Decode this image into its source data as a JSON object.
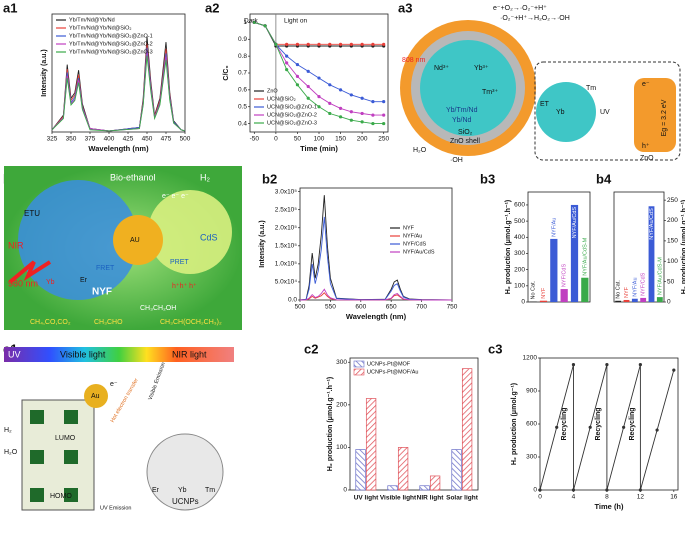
{
  "panels": [
    "a1",
    "a2",
    "a3",
    "b1",
    "b2",
    "b3",
    "b4",
    "c1",
    "c2",
    "c3"
  ],
  "diagram_a3": [
    "e⁻+O₂→·O₂⁻+H⁺",
    "·O₂⁻+H⁺→H₂O₂→·OH",
    "808 nm",
    "Nd³⁺",
    "Yb³⁺",
    "Tm³⁺",
    "Yb/Tm/Nd",
    "Yb/Nd",
    "SiO₂",
    "ZnO shell",
    "H₂O",
    "·OH",
    "ET",
    "Yb",
    "Tm",
    "UV",
    "e⁻",
    "h⁺",
    "ZnO",
    "Eg = 3.2 eV"
  ],
  "diagram_b1": [
    "Bio-ethanol",
    "H₂",
    "NIR",
    "980 nm",
    "ETU",
    "Yb",
    "Er",
    "NYF",
    "AU",
    "CdS",
    "PRET",
    "FRET",
    "CH₄,CO,CO₂",
    "CH₃CHO",
    "CH₃CH₂OH",
    "CH₃CH(OCH₂CH₃)₂",
    "e⁻ e⁻ e⁻",
    "h⁺h⁺ h⁺"
  ],
  "diagram_c1": [
    "UV",
    "Visible light",
    "NIR light",
    "LUMO",
    "HOMO",
    "Au",
    "e⁻",
    "H₂",
    "H₂O",
    "Hot electron transfer",
    "Visible Emission",
    "UV Emission",
    "Er",
    "Yb",
    "Tm",
    "UCNPs"
  ],
  "chart_data": [
    {
      "type": "line",
      "x_label": "Wavelength (nm)",
      "y_label": "Intensity (a.u.)",
      "xlim": [
        325,
        500
      ],
      "ylim": [
        0,
        1.05
      ],
      "xticks": [
        325,
        350,
        375,
        400,
        425,
        450,
        475,
        500
      ],
      "legend": "upper left",
      "x": [
        325,
        340,
        345,
        350,
        355,
        360,
        365,
        375,
        400,
        440,
        445,
        450,
        455,
        460,
        467,
        475,
        480,
        485,
        495,
        500
      ],
      "series": [
        {
          "name": "Yb/Tm/Nd@Yb/Nd",
          "color": "#222222",
          "values": [
            0.02,
            0.15,
            0.6,
            0.3,
            0.35,
            0.55,
            0.25,
            0.03,
            0.01,
            0.04,
            0.3,
            0.85,
            0.45,
            0.15,
            0.3,
            0.8,
            0.35,
            0.1,
            0.02,
            0.01
          ]
        },
        {
          "name": "Yb/Tm/Nd@Yb/Nd@SiO₂",
          "color": "#e8403a",
          "values": [
            0.02,
            0.14,
            0.56,
            0.28,
            0.33,
            0.51,
            0.23,
            0.03,
            0.01,
            0.04,
            0.28,
            0.79,
            0.42,
            0.14,
            0.28,
            0.74,
            0.33,
            0.09,
            0.02,
            0.01
          ]
        },
        {
          "name": "Yb/Tm/Nd@Yb/Nd@SiO₂@ZnO-1",
          "color": "#3b5bd6",
          "values": [
            0.02,
            0.13,
            0.53,
            0.26,
            0.31,
            0.48,
            0.22,
            0.03,
            0.01,
            0.04,
            0.26,
            0.75,
            0.4,
            0.13,
            0.26,
            0.7,
            0.31,
            0.09,
            0.02,
            0.01
          ]
        },
        {
          "name": "Yb/Tm/Nd@Yb/Nd@SiO₂@ZnO-2",
          "color": "#c03fc0",
          "values": [
            0.02,
            0.13,
            0.5,
            0.25,
            0.29,
            0.46,
            0.21,
            0.03,
            0.01,
            0.03,
            0.25,
            0.71,
            0.38,
            0.13,
            0.25,
            0.67,
            0.29,
            0.08,
            0.02,
            0.01
          ]
        },
        {
          "name": "Yb/Tm/Nd@Yb/Nd@SiO₂@ZnO-3",
          "color": "#3aaa4a",
          "values": [
            0.02,
            0.12,
            0.48,
            0.24,
            0.28,
            0.44,
            0.2,
            0.02,
            0.01,
            0.03,
            0.24,
            0.68,
            0.36,
            0.12,
            0.24,
            0.64,
            0.28,
            0.08,
            0.02,
            0.01
          ]
        }
      ]
    },
    {
      "type": "line",
      "x_label": "Time (min)",
      "y_label": "C/C₀",
      "xlim": [
        -60,
        260
      ],
      "ylim": [
        0.35,
        1.05
      ],
      "xticks": [
        -50,
        0,
        50,
        100,
        150,
        200,
        250
      ],
      "yticks": [
        0.4,
        0.5,
        0.6,
        0.7,
        0.8,
        0.9,
        1.0
      ],
      "legend": "lower left",
      "markers": true,
      "annotations": [
        "Dark",
        "Light on"
      ],
      "x": [
        -50,
        -25,
        0,
        25,
        50,
        75,
        100,
        125,
        150,
        175,
        200,
        225,
        250
      ],
      "series": [
        {
          "name": "ZnO",
          "color": "#222222",
          "values": [
            1.0,
            0.98,
            0.86,
            0.86,
            0.86,
            0.86,
            0.86,
            0.86,
            0.86,
            0.86,
            0.86,
            0.86,
            0.86
          ]
        },
        {
          "name": "UCN@SiO₂",
          "color": "#e8403a",
          "values": [
            1.0,
            0.98,
            0.87,
            0.87,
            0.87,
            0.87,
            0.87,
            0.87,
            0.87,
            0.87,
            0.87,
            0.87,
            0.87
          ]
        },
        {
          "name": "UCN@SiO₂@ZnO-1",
          "color": "#3b5bd6",
          "values": [
            1.0,
            0.98,
            0.87,
            0.8,
            0.75,
            0.71,
            0.67,
            0.63,
            0.6,
            0.57,
            0.55,
            0.53,
            0.53
          ]
        },
        {
          "name": "UCN@SiO₂@ZnO-2",
          "color": "#c03fc0",
          "values": [
            1.0,
            0.98,
            0.87,
            0.76,
            0.68,
            0.62,
            0.56,
            0.52,
            0.49,
            0.47,
            0.46,
            0.45,
            0.45
          ]
        },
        {
          "name": "UCN@SiO₂@ZnO-3",
          "color": "#3aaa4a",
          "values": [
            1.0,
            0.98,
            0.87,
            0.72,
            0.63,
            0.55,
            0.5,
            0.46,
            0.44,
            0.42,
            0.41,
            0.4,
            0.4
          ]
        }
      ]
    },
    {
      "type": "line",
      "x_label": "Wavelength (nm)",
      "y_label": "Intensity (a.u.)",
      "xlim": [
        500,
        750
      ],
      "ylim": [
        0,
        310000
      ],
      "xticks": [
        500,
        550,
        600,
        650,
        700,
        750
      ],
      "yticks": [
        {
          "value": 0,
          "label": "0.0"
        },
        {
          "value": 50000,
          "label": "5.0x10⁴"
        },
        {
          "value": 100000,
          "label": "1.0x10⁵"
        },
        {
          "value": 150000,
          "label": "1.5x10⁵"
        },
        {
          "value": 200000,
          "label": "2.0x10⁵"
        },
        {
          "value": 250000,
          "label": "2.5x10⁵"
        },
        {
          "value": 300000,
          "label": "3.0x10⁵"
        }
      ],
      "legend": "center right",
      "x": [
        500,
        510,
        515,
        520,
        525,
        530,
        535,
        540,
        545,
        550,
        560,
        600,
        640,
        650,
        655,
        660,
        665,
        670,
        680,
        700,
        750
      ],
      "series": [
        {
          "name": "NYF",
          "color": "#222222",
          "values": [
            0,
            2000,
            40000,
            130000,
            60000,
            100000,
            180000,
            290000,
            150000,
            60000,
            5000,
            1000,
            2000,
            30000,
            50000,
            55000,
            30000,
            10000,
            3000,
            1000,
            0
          ]
        },
        {
          "name": "NYF/Au",
          "color": "#e8403a",
          "values": [
            0,
            300,
            3000,
            10000,
            5000,
            8000,
            12000,
            20000,
            10000,
            4000,
            500,
            200,
            300,
            4000,
            12000,
            14000,
            8000,
            2000,
            500,
            100,
            0
          ]
        },
        {
          "name": "NYF/CdS",
          "color": "#3b5bd6",
          "values": [
            0,
            1500,
            30000,
            100000,
            45000,
            80000,
            140000,
            230000,
            120000,
            45000,
            4000,
            800,
            1500,
            25000,
            40000,
            45000,
            25000,
            8000,
            2000,
            800,
            0
          ]
        },
        {
          "name": "NYF/Au/CdS",
          "color": "#c03fc0",
          "values": [
            0,
            500,
            5000,
            15000,
            7000,
            10000,
            18000,
            30000,
            14000,
            6000,
            600,
            200,
            300,
            5000,
            15000,
            18000,
            10000,
            3000,
            600,
            100,
            0
          ]
        }
      ]
    },
    {
      "type": "bar",
      "y_label": "H₂ production (μmol.g⁻¹.h⁻¹)",
      "ylim": [
        0,
        680
      ],
      "yticks": [
        0,
        100,
        200,
        300,
        400,
        500,
        600
      ],
      "categories": [
        "No Cat.",
        "NYF",
        "NYF/Au",
        "NYF/CdS",
        "NYF/Au/CdS",
        "NYF/Au/CdS-M"
      ],
      "values": [
        3,
        8,
        390,
        80,
        600,
        150
      ],
      "colors": [
        "#222222",
        "#e8403a",
        "#3b5bd6",
        "#c03fc0",
        "#3b5bd6",
        "#3aaa4a"
      ]
    },
    {
      "type": "bar",
      "y_label": "H₂ production (μmol.g⁻¹.h⁻¹)",
      "y_axis_side": "right",
      "ylim": [
        0,
        270
      ],
      "yticks": [
        0,
        50,
        100,
        150,
        200,
        250
      ],
      "categories": [
        "No Cat.",
        "NYF",
        "NYF/Au",
        "NYF/CdS",
        "NYF/Au/CdS",
        "NYF/Au/CdS-M"
      ],
      "values": [
        3,
        5,
        8,
        10,
        235,
        12
      ],
      "colors": [
        "#222222",
        "#e8403a",
        "#3b5bd6",
        "#c03fc0",
        "#3b5bd6",
        "#3aaa4a"
      ]
    },
    {
      "type": "groupbar",
      "y_label": "H₂ production (μmol.g⁻¹.h⁻¹)",
      "ylim": [
        0,
        310
      ],
      "yticks": [
        0,
        100,
        200,
        300
      ],
      "legend": "upper left",
      "categories": [
        "UV light",
        "Visible light",
        "NIR light",
        "Solar light"
      ],
      "series": [
        {
          "name": "UCNPs-Pt@MOF",
          "color": "#6a6fc8",
          "values": [
            95,
            10,
            10,
            95
          ]
        },
        {
          "name": "UCNPs-Pt@MOF/Au",
          "color": "#e0525a",
          "values": [
            215,
            100,
            33,
            285
          ]
        }
      ]
    },
    {
      "type": "line",
      "x_label": "Time (h)",
      "y_label": "H₂ production (μmol.g⁻¹)",
      "xlim": [
        0,
        16.5
      ],
      "ylim": [
        0,
        1200
      ],
      "xticks": [
        0,
        4,
        8,
        12,
        16
      ],
      "yticks": [
        0,
        300,
        600,
        900,
        1200
      ],
      "markers": true,
      "annotations": [
        "Recycling",
        "Recycling",
        "Recycling"
      ],
      "x": [
        0,
        2,
        4,
        4,
        6,
        8,
        8,
        10,
        12,
        12,
        14,
        16
      ],
      "series": [
        {
          "name": "H₂",
          "color": "#333333",
          "values": [
            0,
            570,
            1140,
            0,
            570,
            1140,
            0,
            570,
            1140,
            0,
            545,
            1090
          ]
        }
      ]
    }
  ]
}
